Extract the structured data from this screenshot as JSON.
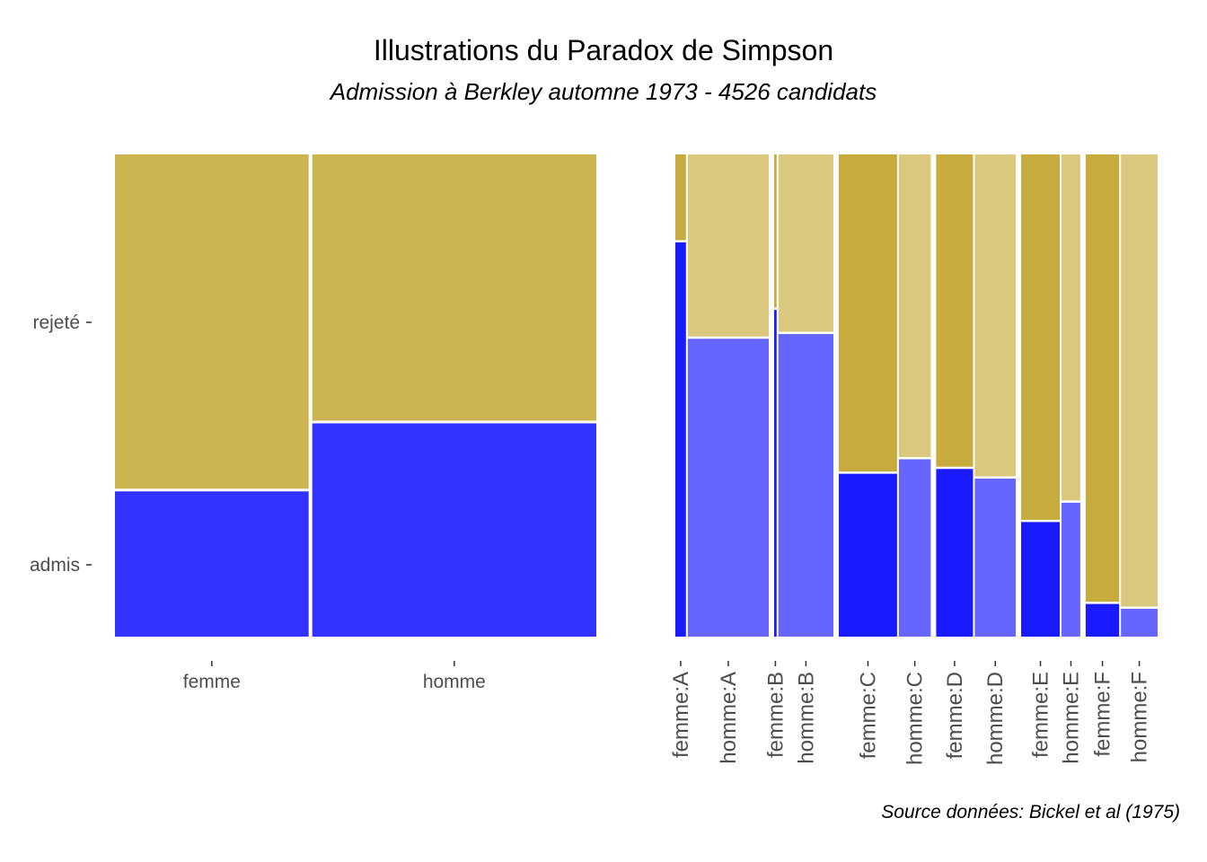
{
  "title": "Illustrations du Paradox de Simpson",
  "subtitle": "Admission à Berkley automne 1973 - 4526 candidats",
  "caption": "Source données: Bickel et al (1975)",
  "colors": {
    "admis_femme": "#1a1aff",
    "admis_homme": "#6666ff",
    "rejete_femme": "#c7ab3d",
    "rejete_homme": "#dbc87f",
    "admis_left": "#3333ff",
    "rejete_left": "#ccb550"
  },
  "chart_data": [
    {
      "type": "mosaic",
      "y_categories": [
        "admis",
        "rejeté"
      ],
      "categories": [
        "femme",
        "homme"
      ],
      "applicants": [
        1835,
        2691
      ],
      "admitted_share": [
        0.304,
        0.445
      ]
    },
    {
      "type": "mosaic",
      "y_categories": [
        "admis",
        "rejeté"
      ],
      "categories": [
        "femme:A",
        "homme:A",
        "femme:B",
        "homme:B",
        "femme:C",
        "homme:C",
        "femme:D",
        "homme:D",
        "femme:E",
        "homme:E",
        "femme:F",
        "homme:F"
      ],
      "applicants": [
        108,
        825,
        25,
        560,
        593,
        325,
        375,
        417,
        393,
        191,
        341,
        373
      ],
      "admitted_share": [
        0.82,
        0.62,
        0.68,
        0.63,
        0.34,
        0.37,
        0.35,
        0.33,
        0.24,
        0.28,
        0.07,
        0.06
      ]
    }
  ]
}
